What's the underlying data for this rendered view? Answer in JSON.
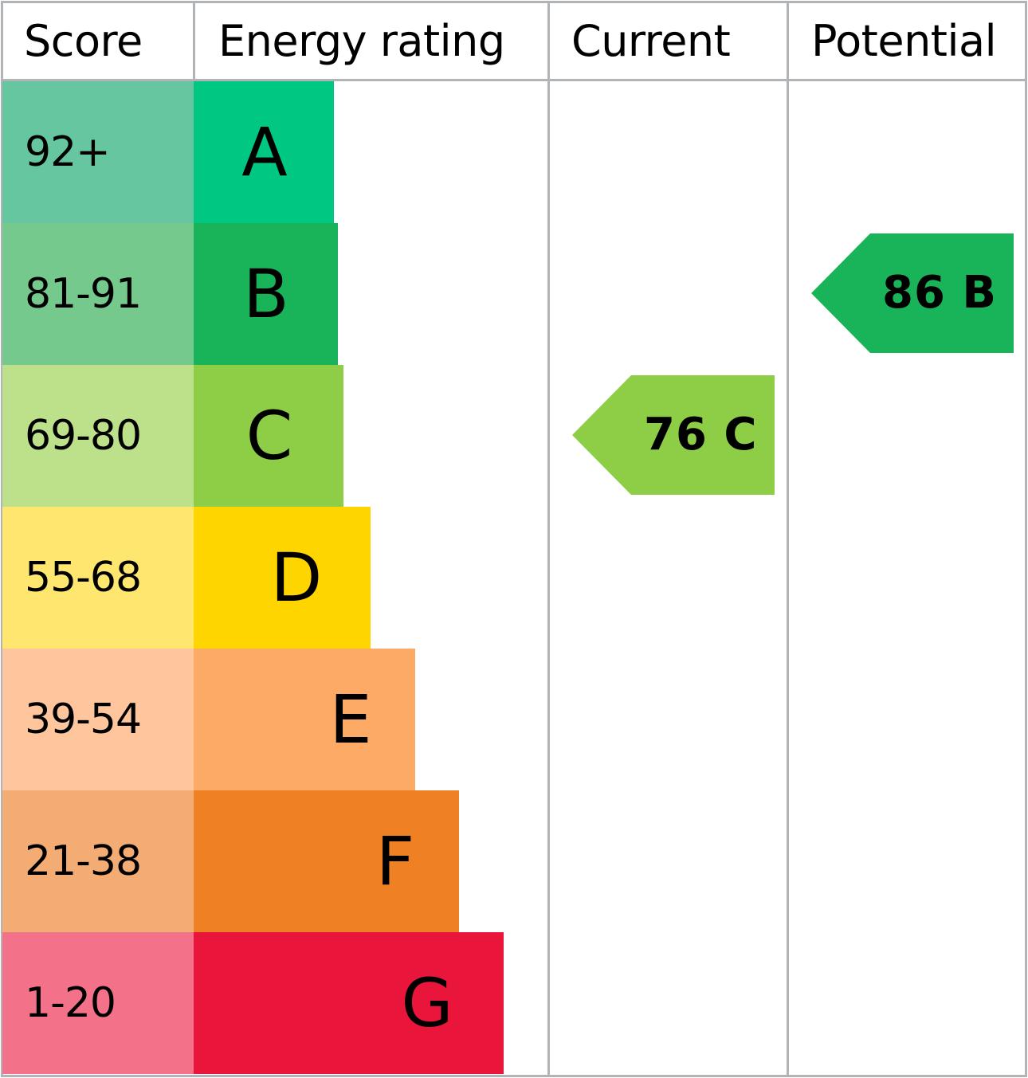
{
  "headers": {
    "score": "Score",
    "energy_rating": "Energy rating",
    "current": "Current",
    "potential": "Potential"
  },
  "chart_data": {
    "type": "bar",
    "bands": [
      {
        "letter": "A",
        "range": "92+",
        "score_color": "#65c6a0",
        "bar_color": "#00c781"
      },
      {
        "letter": "B",
        "range": "81-91",
        "score_color": "#75c98c",
        "bar_color": "#19b459"
      },
      {
        "letter": "C",
        "range": "69-80",
        "score_color": "#bde08a",
        "bar_color": "#8dce46"
      },
      {
        "letter": "D",
        "range": "55-68",
        "score_color": "#ffe66f",
        "bar_color": "#ffd500"
      },
      {
        "letter": "E",
        "range": "39-54",
        "score_color": "#ffc69d",
        "bar_color": "#fcaa65"
      },
      {
        "letter": "F",
        "range": "21-38",
        "score_color": "#f4ac75",
        "bar_color": "#ef8023"
      },
      {
        "letter": "G",
        "range": "1-20",
        "score_color": "#f37289",
        "bar_color": "#e9153b"
      }
    ],
    "current": {
      "value": 76,
      "letter": "C",
      "label": "76 C",
      "color": "#8dce46"
    },
    "potential": {
      "value": 86,
      "letter": "B",
      "label": "86 B",
      "color": "#19b459"
    }
  }
}
